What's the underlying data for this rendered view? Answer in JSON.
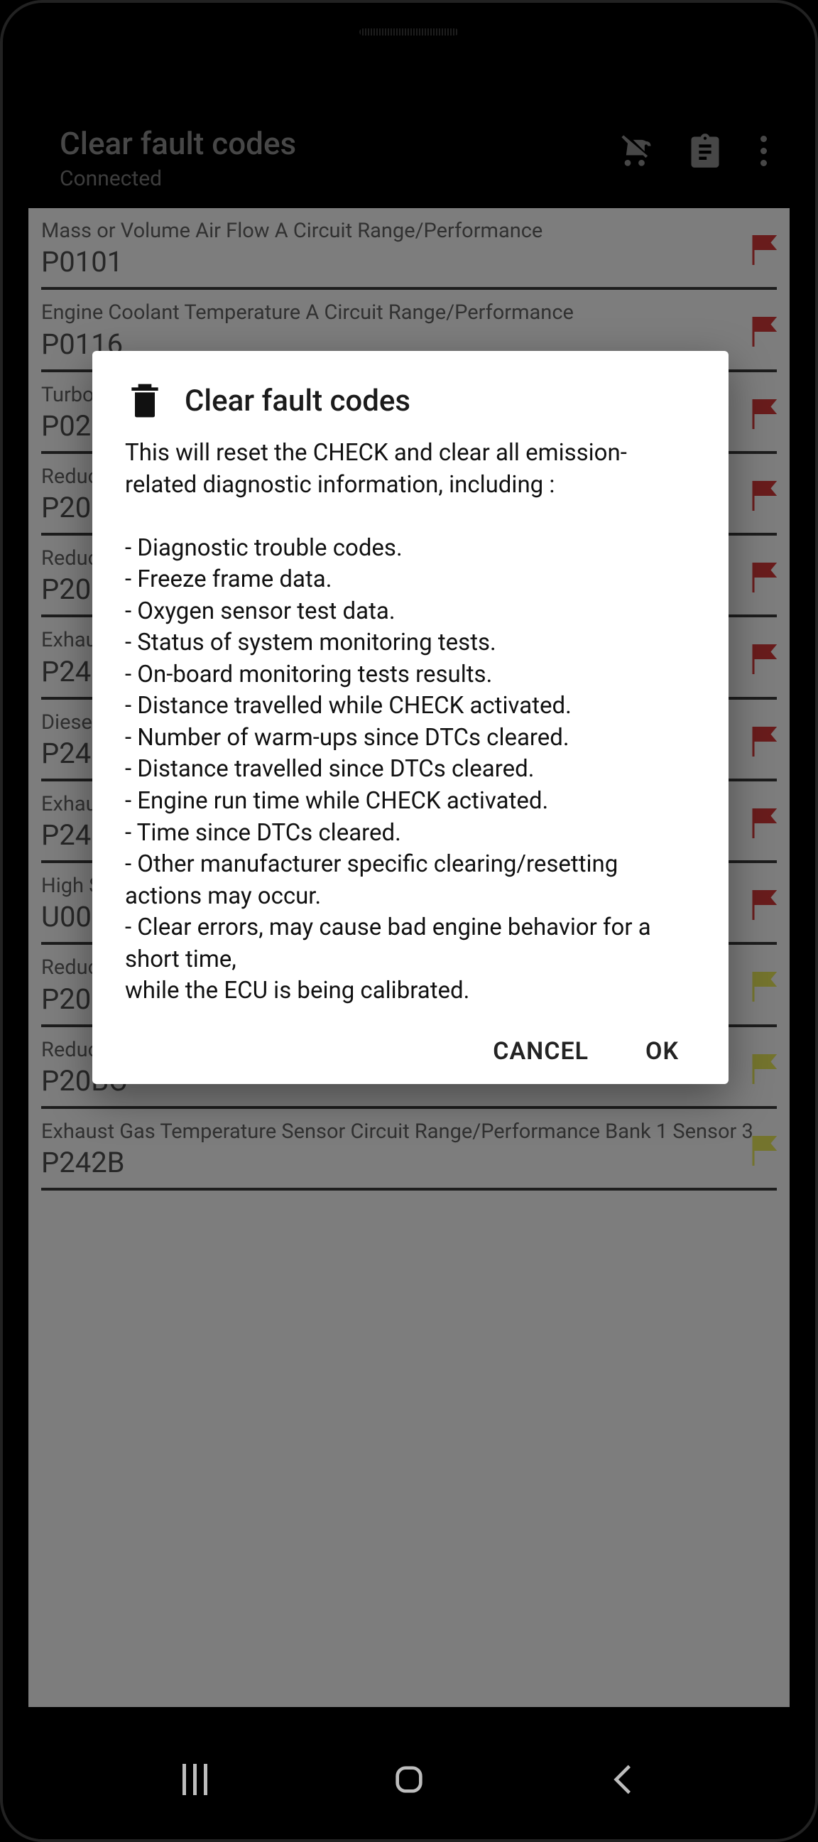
{
  "colors": {
    "phone_bg": "#000000",
    "header_text": "#7b7b7b",
    "content_bg": "#d8d8d8",
    "row_desc": "#555555",
    "row_code": "#444444",
    "rule": "#333333",
    "flag_red": "#b53131",
    "flag_yellow": "#c8c84e",
    "dialog_bg": "#ffffff",
    "dialog_text": "#111111",
    "nav_icon": "#bdbdbd"
  },
  "header": {
    "title": "Clear fault codes",
    "subtitle": "Connected"
  },
  "codes": [
    {
      "desc": "Mass or Volume Air Flow A Circuit Range/Performance",
      "code": "P0101",
      "flag": "red"
    },
    {
      "desc": "Engine Coolant Temperature A Circuit Range/Performance",
      "code": "P0116",
      "flag": "red"
    },
    {
      "desc": "Turbocharger/Supercharger Overboost Condition A Range/Performance",
      "code": "P0234",
      "flag": "red"
    },
    {
      "desc": "Reductant Tank Temperature Sensor A",
      "code": "P205A",
      "flag": "red"
    },
    {
      "desc": "Reductant Heater Coolant Valve",
      "code": "P205B",
      "flag": "red"
    },
    {
      "desc": "Exhaust Gas Temperature Sensor Circuit Bank 1 Sensor 3",
      "code": "P242A",
      "flag": "red"
    },
    {
      "desc": "Diesel Particulate Filter Differential Sensor Circuit Range",
      "code": "P2453",
      "flag": "red"
    },
    {
      "desc": "Exhaust Gas Temperature Sensor Circuit Bank 1 Sensor 4",
      "code": "P246C",
      "flag": "red"
    },
    {
      "desc": "High Speed CAN Communication Bus",
      "code": "U0010",
      "flag": "red"
    },
    {
      "desc": "Reductant Tank Heater Control Circuit/Open",
      "code": "P20B9",
      "flag": "yellow"
    },
    {
      "desc": "Reductant heater control A - circuit high",
      "code": "P20BC",
      "flag": "yellow"
    },
    {
      "desc": "Exhaust Gas Temperature Sensor Circuit Range/Performance Bank 1 Sensor 3",
      "code": "P242B",
      "flag": "yellow"
    }
  ],
  "dialog": {
    "title": "Clear fault codes",
    "body": "This will reset the CHECK and clear all emission-related diagnostic information, including :\n\n - Diagnostic trouble codes.\n - Freeze frame data.\n - Oxygen sensor test data.\n - Status of system monitoring tests.\n - On-board monitoring tests results.\n - Distance travelled while CHECK activated.\n - Number of warm-ups since DTCs cleared.\n - Distance travelled since DTCs cleared.\n - Engine run time while CHECK activated.\n - Time since DTCs cleared.\n - Other manufacturer specific clearing/resetting actions may occur.\n - Clear errors, may cause bad engine behavior for a short time,\n while the ECU is being calibrated.",
    "cancel": "CANCEL",
    "ok": "OK"
  }
}
